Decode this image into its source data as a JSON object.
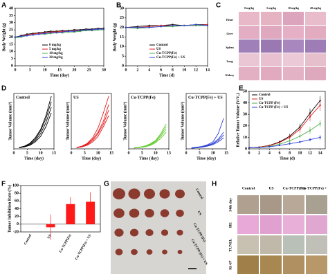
{
  "panel_labels": [
    "A",
    "B",
    "C",
    "D",
    "E",
    "F",
    "G",
    "H"
  ],
  "chart_data": [
    {
      "type": "line",
      "xlabel": "Time (day)",
      "ylabel": "Body Weight (g)",
      "x": [
        0,
        2,
        4,
        6,
        8,
        10,
        12,
        14,
        16,
        18,
        20,
        22,
        24,
        26,
        28,
        30
      ],
      "xlim": [
        0,
        30
      ],
      "ylim": [
        0,
        40
      ],
      "xticks": [
        0,
        5,
        10,
        15,
        20,
        25,
        30
      ],
      "yticks": [
        0,
        5,
        10,
        15,
        20,
        25,
        30,
        35,
        40
      ],
      "legend": "lower center",
      "series": [
        {
          "name": "0 mg/kg",
          "color": "#000000",
          "values": [
            20,
            21,
            22,
            22.5,
            23,
            23.5,
            24,
            24,
            24.5,
            24.5,
            25,
            25,
            25.5,
            25.5,
            26,
            26
          ]
        },
        {
          "name": "5 mg/kg",
          "color": "#e41a1c",
          "values": [
            20,
            20.5,
            21.5,
            22,
            22.5,
            23,
            23.5,
            23.5,
            24,
            24,
            24.5,
            24.5,
            25,
            25,
            25.5,
            25.5
          ]
        },
        {
          "name": "10 mg/kg",
          "color": "#4daf4a",
          "values": [
            19.5,
            20,
            21,
            21.5,
            22,
            22,
            22.5,
            23,
            23,
            23.5,
            23.5,
            24,
            24.5,
            24.5,
            25,
            25
          ]
        },
        {
          "name": "20 mg/kg",
          "color": "#2b3fd6",
          "values": [
            20,
            20.5,
            21,
            21.5,
            22,
            22.5,
            23,
            23,
            23.5,
            24,
            24,
            24.5,
            25,
            25,
            25.5,
            25.5
          ]
        }
      ]
    },
    {
      "type": "line",
      "xlabel": "Time (d)",
      "ylabel": "Body Weight (g)",
      "x": [
        0,
        2,
        4,
        6,
        8,
        10,
        12,
        14
      ],
      "xlim": [
        0,
        14
      ],
      "ylim": [
        0,
        30
      ],
      "xticks": [
        0,
        2,
        4,
        6,
        8,
        10,
        12,
        14
      ],
      "yticks": [
        0,
        5,
        10,
        15,
        20,
        25,
        30
      ],
      "legend": "lower center",
      "series": [
        {
          "name": "Control",
          "color": "#000000",
          "values": [
            20,
            20.5,
            21,
            21,
            21.5,
            21,
            21.5,
            21.5
          ]
        },
        {
          "name": "US",
          "color": "#e41a1c",
          "values": [
            20,
            20,
            20.5,
            21,
            21,
            21,
            21,
            21.5
          ]
        },
        {
          "name": "Cu-TCPP(Fe)",
          "color": "#4daf4a",
          "values": [
            20,
            19.5,
            20,
            20.5,
            20.5,
            21,
            21,
            21
          ]
        },
        {
          "name": "Cu-TCPP(Fe) + US",
          "color": "#2b3fd6",
          "values": [
            20,
            20,
            20,
            20.5,
            21,
            21,
            21.5,
            21
          ]
        }
      ]
    },
    {
      "type": "line",
      "title": "Control",
      "xlabel": "Time (day)",
      "ylabel": "Tumor Volume (mm³)",
      "x": [
        2,
        4,
        6,
        8,
        10,
        12,
        14
      ],
      "xlim": [
        0,
        15
      ],
      "ylim": [
        0,
        2000
      ],
      "xticks": [
        0,
        5,
        10,
        15
      ],
      "series": [
        {
          "color": "#000000",
          "values": [
            50,
            100,
            200,
            400,
            700,
            1200,
            1900
          ]
        },
        {
          "color": "#000000",
          "values": [
            50,
            90,
            180,
            350,
            650,
            1100,
            1700
          ]
        },
        {
          "color": "#000000",
          "values": [
            40,
            80,
            150,
            300,
            550,
            950,
            1500
          ]
        },
        {
          "color": "#000000",
          "values": [
            40,
            70,
            130,
            250,
            450,
            800,
            1300
          ]
        }
      ]
    },
    {
      "type": "line",
      "title": "US",
      "xlabel": "Time (day)",
      "ylabel": "Tumor Volume (mm³)",
      "x": [
        2,
        4,
        6,
        8,
        10,
        12,
        14
      ],
      "xlim": [
        0,
        15
      ],
      "ylim": [
        0,
        2000
      ],
      "xticks": [
        0,
        5,
        10,
        15
      ],
      "series": [
        {
          "color": "#e41a1c",
          "values": [
            50,
            100,
            200,
            400,
            750,
            1300,
            1900
          ]
        },
        {
          "color": "#e41a1c",
          "values": [
            50,
            90,
            180,
            350,
            600,
            1000,
            1600
          ]
        },
        {
          "color": "#e41a1c",
          "values": [
            40,
            80,
            160,
            300,
            550,
            900,
            1400
          ]
        },
        {
          "color": "#e41a1c",
          "values": [
            40,
            70,
            130,
            250,
            450,
            800,
            1200
          ]
        }
      ]
    },
    {
      "type": "line",
      "title": "Cu-TCPP(Fe)",
      "xlabel": "Time (day)",
      "ylabel": "Tumor Volume (mm³)",
      "x": [
        2,
        4,
        6,
        8,
        10,
        12,
        14
      ],
      "xlim": [
        0,
        15
      ],
      "ylim": [
        0,
        2000
      ],
      "xticks": [
        0,
        5,
        10,
        15
      ],
      "series": [
        {
          "color": "#66cc33",
          "values": [
            40,
            60,
            100,
            180,
            300,
            550,
            900
          ]
        },
        {
          "color": "#66cc33",
          "values": [
            40,
            60,
            90,
            160,
            280,
            500,
            800
          ]
        },
        {
          "color": "#66cc33",
          "values": [
            30,
            50,
            80,
            140,
            250,
            450,
            700
          ]
        },
        {
          "color": "#66cc33",
          "values": [
            30,
            50,
            70,
            120,
            220,
            380,
            600
          ]
        }
      ]
    },
    {
      "type": "line",
      "title": "Cu-TCPP(Fe) + US",
      "xlabel": "Time (day)",
      "ylabel": "Tumor Volume (mm³)",
      "x": [
        2,
        4,
        6,
        8,
        10,
        12,
        14
      ],
      "xlim": [
        0,
        15
      ],
      "ylim": [
        0,
        2000
      ],
      "xticks": [
        0,
        5,
        10,
        15
      ],
      "series": [
        {
          "color": "#2b3fd6",
          "values": [
            40,
            60,
            90,
            150,
            250,
            550,
            1100
          ]
        },
        {
          "color": "#2b3fd6",
          "values": [
            30,
            50,
            80,
            130,
            200,
            350,
            600
          ]
        },
        {
          "color": "#2b3fd6",
          "values": [
            30,
            40,
            70,
            110,
            180,
            300,
            500
          ]
        },
        {
          "color": "#2b3fd6",
          "values": [
            20,
            40,
            60,
            100,
            150,
            250,
            400
          ]
        }
      ]
    },
    {
      "type": "line",
      "xlabel": "Time (d)",
      "ylabel": "Relative Tumor Volume (V/V₀)",
      "x": [
        0,
        2,
        4,
        6,
        8,
        10,
        12,
        14
      ],
      "xlim": [
        0,
        15
      ],
      "ylim": [
        0,
        50
      ],
      "xticks": [
        0,
        2,
        4,
        6,
        8,
        10,
        12,
        14
      ],
      "yticks": [
        0,
        10,
        20,
        30,
        40,
        50
      ],
      "legend": "upper left",
      "series": [
        {
          "name": "Control",
          "color": "#000000",
          "values": [
            1,
            1.5,
            3,
            6,
            11,
            19,
            31,
            42
          ],
          "errors": [
            0,
            0.3,
            0.6,
            1.2,
            2,
            3,
            4,
            4
          ]
        },
        {
          "name": "US",
          "color": "#e41a1c",
          "values": [
            1,
            1.5,
            2.8,
            5.5,
            10,
            17,
            28,
            38
          ],
          "errors": [
            0,
            0.3,
            0.6,
            1.2,
            2,
            3,
            4,
            5
          ]
        },
        {
          "name": "Cu-TCPP (Fe)",
          "color": "#4daf4a",
          "values": [
            1,
            1.3,
            2.2,
            4,
            7,
            11,
            16,
            22
          ],
          "errors": [
            0,
            0.2,
            0.5,
            1,
            1.5,
            2,
            3,
            3
          ]
        },
        {
          "name": "Cu-TCPP (Fe) + US",
          "color": "#2b3fd6",
          "values": [
            1,
            1.2,
            1.8,
            3,
            4.5,
            6,
            8,
            10
          ],
          "errors": [
            0,
            0.2,
            0.4,
            0.6,
            1,
            1.2,
            1.5,
            2
          ]
        }
      ]
    },
    {
      "type": "bar",
      "ylabel": "Tumor Inhibition Rate (%)",
      "categories": [
        "Control",
        "US",
        "Cu-TCPP(Fe)",
        "Cu-TCPP(Fe) + US"
      ],
      "values": [
        0,
        -8,
        52,
        58
      ],
      "errors": [
        null,
        33,
        18,
        24
      ],
      "color": "#ff1a1a",
      "ylim": [
        -20,
        100
      ],
      "yticks": [
        -20,
        0,
        20,
        40,
        60,
        80,
        100
      ]
    }
  ],
  "panel_c": {
    "columns": [
      "0 mg/kg",
      "5 mg/kg",
      "10 mg/kg",
      "20 mg/kg"
    ],
    "rows": [
      "Heart",
      "Liver",
      "Spleen",
      "Lung",
      "Kidney"
    ]
  },
  "panel_g": {
    "rows": [
      "Control",
      "US",
      "Cu-TCPP (Fe)",
      "Cu-TCPP (Fe) + US"
    ]
  },
  "panel_h": {
    "columns": [
      "Control",
      "US",
      "Cu-TCPP(Fe)",
      "Cu-TCPP(Fe) + US"
    ],
    "rows": [
      "14th day",
      "HE",
      "TUNEL",
      "Ki-67"
    ]
  }
}
